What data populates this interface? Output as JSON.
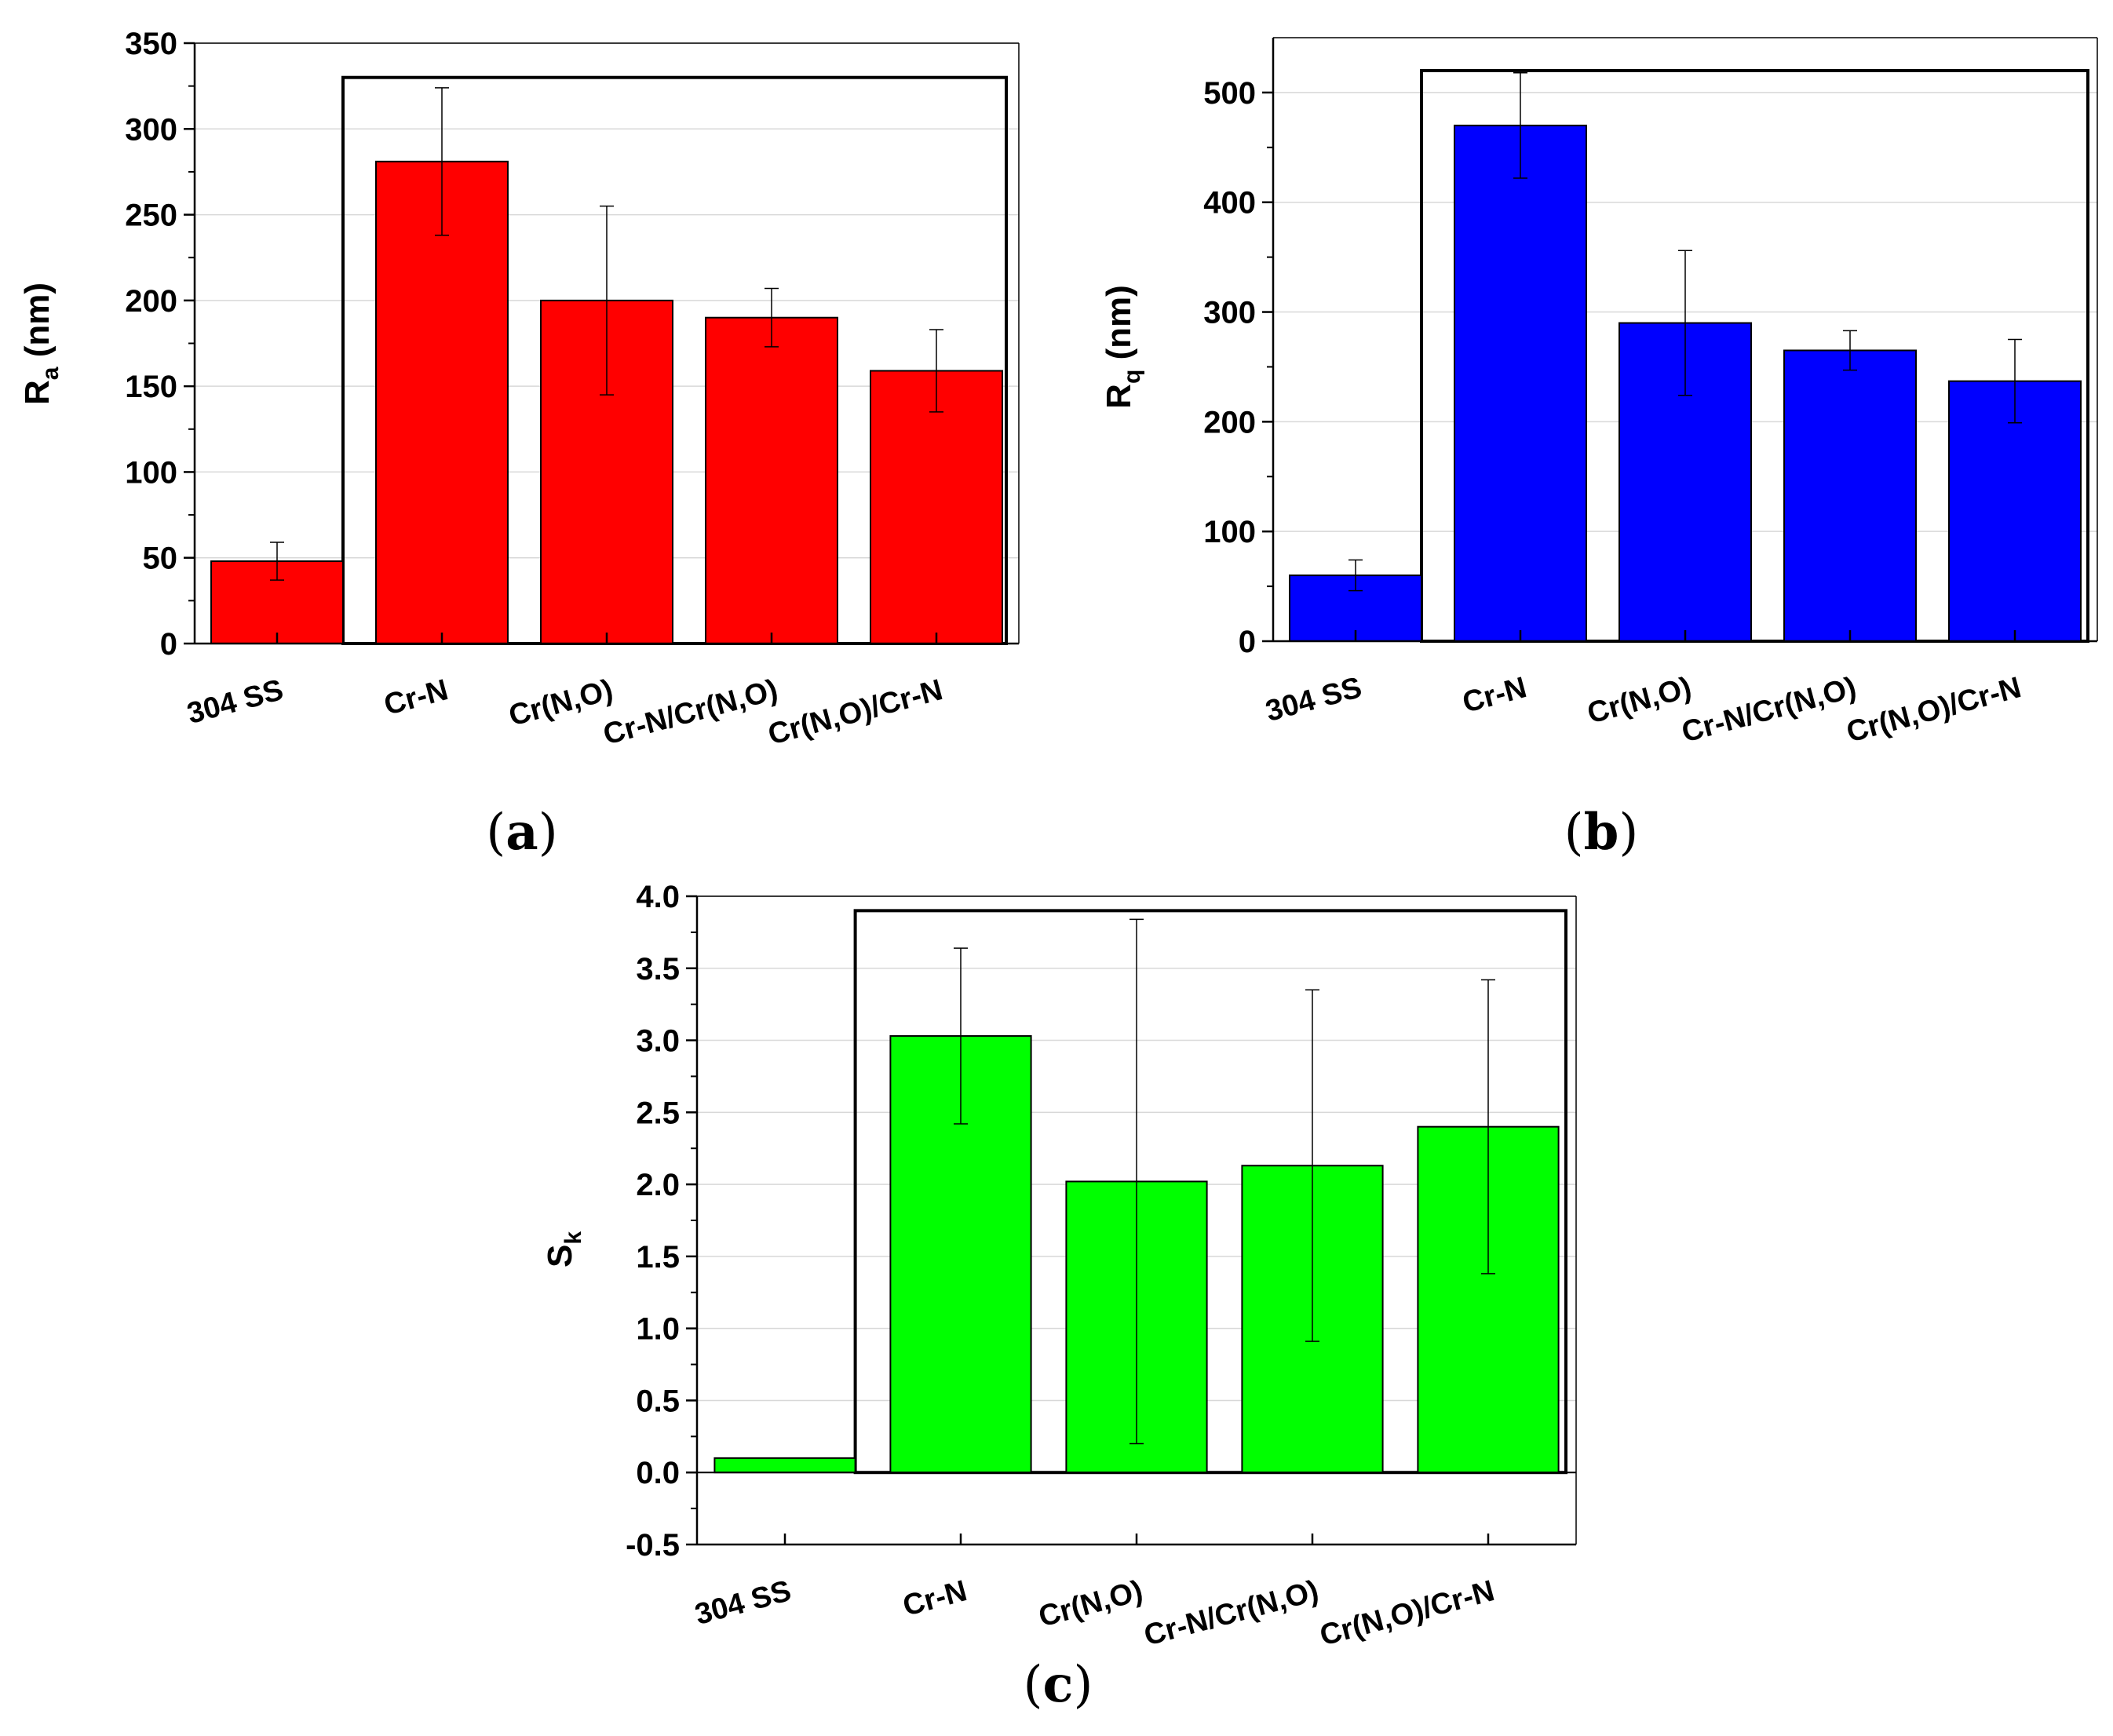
{
  "chart_data": [
    {
      "panel": "a",
      "type": "bar",
      "title": "",
      "ylabel_main": "R",
      "ylabel_sub": "a",
      "ylabel_unit": " (nm)",
      "xlabel": "",
      "categories": [
        "304 SS",
        "Cr-N",
        "Cr(N,O)",
        "Cr-N/Cr(N,O)",
        "Cr(N,O)/Cr-N"
      ],
      "values": [
        48,
        281,
        200,
        190,
        159
      ],
      "errors": [
        11,
        43,
        55,
        17,
        24
      ],
      "ylim": [
        0,
        350
      ],
      "yticks": [
        0,
        50,
        100,
        150,
        200,
        250,
        300,
        350
      ],
      "grid": true,
      "bar_color": "#ff0000",
      "highlight_box_top": 330
    },
    {
      "panel": "b",
      "type": "bar",
      "title": "",
      "ylabel_main": "R",
      "ylabel_sub": "q",
      "ylabel_unit": " (nm)",
      "xlabel": "",
      "categories": [
        "304 SS",
        "Cr-N",
        "Cr(N,O)",
        "Cr-N/Cr(N,O)",
        "Cr(N,O)/Cr-N"
      ],
      "values": [
        60,
        470,
        290,
        265,
        237
      ],
      "errors": [
        14,
        48,
        66,
        18,
        38
      ],
      "ylim": [
        0,
        550
      ],
      "yticks": [
        0,
        100,
        200,
        300,
        400,
        500
      ],
      "grid": true,
      "bar_color": "#0000ff",
      "highlight_box_top": 520
    },
    {
      "panel": "c",
      "type": "bar",
      "title": "",
      "ylabel_main": "S",
      "ylabel_sub": "k",
      "ylabel_unit": "",
      "xlabel": "",
      "categories": [
        "304 SS",
        "Cr-N",
        "Cr(N,O)",
        "Cr-N/Cr(N,O)",
        "Cr(N,O)/Cr-N"
      ],
      "values": [
        0.1,
        3.03,
        2.02,
        2.13,
        2.4
      ],
      "errors": [
        0,
        0.61,
        1.82,
        1.22,
        1.02
      ],
      "ylim": [
        -0.5,
        4.0
      ],
      "yticks": [
        -0.5,
        0.0,
        0.5,
        1.0,
        1.5,
        2.0,
        2.5,
        3.0,
        3.5,
        4.0
      ],
      "grid": true,
      "bar_color": "#00ff00",
      "highlight_box_top": 3.9
    }
  ],
  "panel_labels": {
    "a": {
      "open": "(",
      "letter": "a",
      "close": ")"
    },
    "b": {
      "open": "(",
      "letter": "b",
      "close": ")"
    },
    "c": {
      "open": "(",
      "letter": "c",
      "close": ")"
    }
  }
}
